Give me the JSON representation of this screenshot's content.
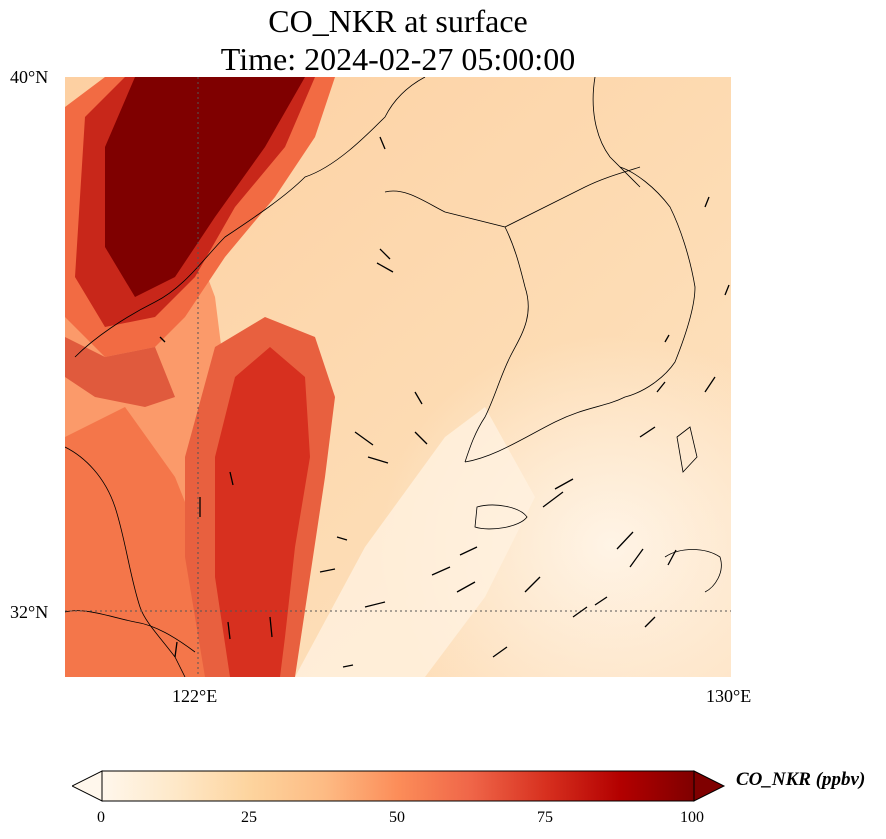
{
  "title": {
    "line1": "CO_NKR at surface",
    "line2": "Time: 2024-02-27 05:00:00"
  },
  "map": {
    "lat_ticks": [
      "40°N",
      "32°N"
    ],
    "lon_ticks": [
      "122°E",
      "130°E"
    ],
    "extent": {
      "lon_min": 120,
      "lon_max": 130,
      "lat_min": 31,
      "lat_max": 40
    },
    "gridlines": {
      "lon": [
        122
      ],
      "lat": [
        32
      ]
    }
  },
  "colorbar": {
    "label": "CO_NKR (ppbv)",
    "ticks": [
      "0",
      "25",
      "50",
      "75",
      "100"
    ],
    "range": [
      0,
      100
    ],
    "extend": "both",
    "colormap": "OrRd",
    "colors": [
      "#fff7ec",
      "#fee8c8",
      "#fdd49e",
      "#fdbb84",
      "#fc8d59",
      "#ef6548",
      "#d7301f",
      "#b30000",
      "#7f0000"
    ]
  }
}
